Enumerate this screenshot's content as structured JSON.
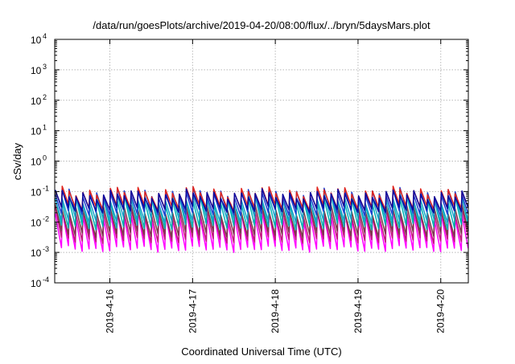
{
  "chart_data": {
    "type": "line",
    "title": "/data/run/goesPlots/archive/2019-04-20/08:00/flux/../bryn/5daysMars.plot",
    "xlabel": "Coordinated Universal Time (UTC)",
    "ylabel": "cSv/day",
    "y_scale": "log",
    "ylim_exponent": [
      -4,
      4
    ],
    "y_ticks": [
      {
        "base": "10",
        "exp": "-4"
      },
      {
        "base": "10",
        "exp": "-3"
      },
      {
        "base": "10",
        "exp": "-2"
      },
      {
        "base": "10",
        "exp": "-1"
      },
      {
        "base": "10",
        "exp": "0"
      },
      {
        "base": "10",
        "exp": "1"
      },
      {
        "base": "10",
        "exp": "2"
      },
      {
        "base": "10",
        "exp": "3"
      },
      {
        "base": "10",
        "exp": "4"
      }
    ],
    "xlim": [
      "2019-04-15 08:00",
      "2019-04-20 08:00"
    ],
    "x_ticks": [
      "2019-4-16",
      "2019-4-17",
      "2019-4-18",
      "2019-4-19",
      "2019-4-20"
    ],
    "grid": true,
    "legend": "none",
    "period_hours": 2,
    "series": [
      {
        "color": "#ff00ff",
        "peak_cSv_per_day": 0.016,
        "trough_cSv_per_day": 0.0013
      },
      {
        "color": "#c0187a",
        "peak_cSv_per_day": 0.02,
        "trough_cSv_per_day": 0.0025
      },
      {
        "color": "#7a3a4a",
        "peak_cSv_per_day": 0.025,
        "trough_cSv_per_day": 0.004
      },
      {
        "color": "#00b3b3",
        "peak_cSv_per_day": 0.05,
        "trough_cSv_per_day": 0.007
      },
      {
        "color": "#1aa0c8",
        "peak_cSv_per_day": 0.06,
        "trough_cSv_per_day": 0.012
      },
      {
        "color": "#1f3fd0",
        "peak_cSv_per_day": 0.09,
        "trough_cSv_per_day": 0.02
      },
      {
        "color": "#e0261f",
        "peak_cSv_per_day": 0.1,
        "trough_cSv_per_day": 0.03
      },
      {
        "color": "#0a0aa0",
        "peak_cSv_per_day": 0.08,
        "trough_cSv_per_day": 0.025
      }
    ]
  }
}
